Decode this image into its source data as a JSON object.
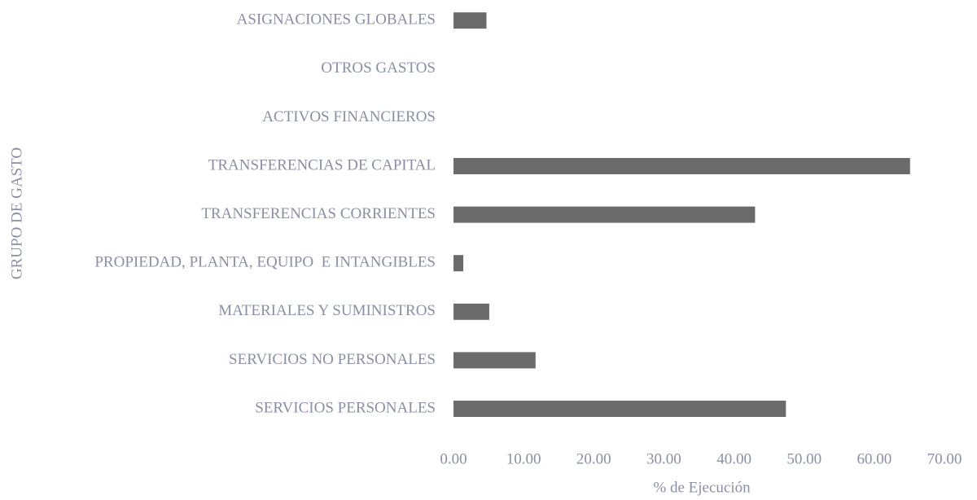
{
  "chart_data": {
    "type": "barh",
    "xlabel": "% de Ejecución",
    "ylabel": "GRUPO DE GASTO",
    "categories": [
      "SERVICIOS PERSONALES",
      "SERVICIOS NO PERSONALES",
      "MATERIALES Y SUMINISTROS",
      "PROPIEDAD, PLANTA, EQUIPO  E INTANGIBLES",
      "TRANSFERENCIAS CORRIENTES",
      "TRANSFERENCIAS DE CAPITAL",
      "ACTIVOS FINANCIEROS",
      "OTROS GASTOS",
      "ASIGNACIONES GLOBALES"
    ],
    "values": [
      47.4,
      11.7,
      5.1,
      1.4,
      43.0,
      65.1,
      0,
      0,
      4.7
    ],
    "color": "#6b6b6b",
    "xlim": [
      0,
      70
    ],
    "xticks": [
      {
        "value": 0,
        "label": "0.00"
      },
      {
        "value": 10,
        "label": "10.00"
      },
      {
        "value": 20,
        "label": "20.00"
      },
      {
        "value": 30,
        "label": "30.00"
      },
      {
        "value": 40,
        "label": "40.00"
      },
      {
        "value": 50,
        "label": "50.00"
      },
      {
        "value": 60,
        "label": "60.00"
      },
      {
        "value": 70,
        "label": "70.00"
      }
    ],
    "grid": false
  }
}
